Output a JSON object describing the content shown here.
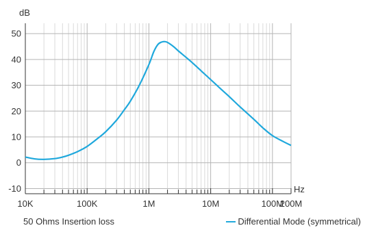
{
  "caption_left": "50 Ohms Insertion loss",
  "chart_data": {
    "type": "line",
    "ylabel": "dB",
    "xlabel": "Hz",
    "x_scale": "log",
    "xlim": [
      10000,
      200000000
    ],
    "ylim": [
      -12,
      54
    ],
    "grid": true,
    "x_ticks": [
      {
        "value": 10000,
        "label": "10K"
      },
      {
        "value": 100000,
        "label": "100K"
      },
      {
        "value": 1000000,
        "label": "1M"
      },
      {
        "value": 10000000,
        "label": "10M"
      },
      {
        "value": 100000000,
        "label": "100M"
      },
      {
        "value": 200000000,
        "label": "200M"
      }
    ],
    "y_ticks": [
      {
        "value": -10,
        "label": "-10"
      },
      {
        "value": 0,
        "label": "0"
      },
      {
        "value": 10,
        "label": "10"
      },
      {
        "value": 20,
        "label": "20"
      },
      {
        "value": 30,
        "label": "30"
      },
      {
        "value": 40,
        "label": "40"
      },
      {
        "value": 50,
        "label": "50"
      }
    ],
    "legend_position": "bottom-right",
    "series": [
      {
        "name": "Differential Mode (symmetrical)",
        "color": "#1fa8dc",
        "points": [
          [
            10000,
            2.2
          ],
          [
            14000,
            1.5
          ],
          [
            20000,
            1.3
          ],
          [
            30000,
            1.6
          ],
          [
            40000,
            2.2
          ],
          [
            50000,
            2.9
          ],
          [
            70000,
            4.3
          ],
          [
            100000,
            6.3
          ],
          [
            150000,
            9.5
          ],
          [
            200000,
            12.0
          ],
          [
            300000,
            16.5
          ],
          [
            400000,
            20.5
          ],
          [
            500000,
            23.8
          ],
          [
            700000,
            30.0
          ],
          [
            1000000,
            38.0
          ],
          [
            1200000,
            43.0
          ],
          [
            1400000,
            45.8
          ],
          [
            1600000,
            46.7
          ],
          [
            1800000,
            46.9
          ],
          [
            2000000,
            46.6
          ],
          [
            2500000,
            45.0
          ],
          [
            3000000,
            43.3
          ],
          [
            4000000,
            40.8
          ],
          [
            5000000,
            38.8
          ],
          [
            7000000,
            35.6
          ],
          [
            10000000,
            32.2
          ],
          [
            15000000,
            28.3
          ],
          [
            20000000,
            25.6
          ],
          [
            30000000,
            21.6
          ],
          [
            50000000,
            16.8
          ],
          [
            70000000,
            13.5
          ],
          [
            100000000,
            10.5
          ],
          [
            150000000,
            8.2
          ],
          [
            200000000,
            6.7
          ]
        ]
      }
    ]
  }
}
